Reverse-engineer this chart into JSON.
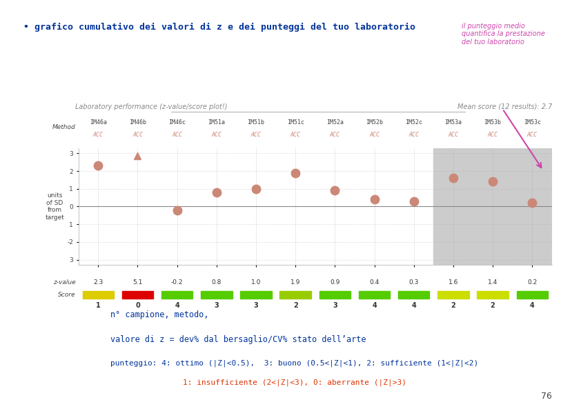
{
  "title_bullet": "• grafico cumulativo dei valori di z e dei punteggi del tuo laboratorio",
  "title_color": "#003399",
  "annotation_text": "il punteggio medio\nquantifica la prestazione\ndel tuo laboratorio",
  "annotation_color": "#cc44aa",
  "chart_title_left": "Laboratory performance (z-value/score plot!)",
  "chart_title_right": "Mean score (12 results): 2.7",
  "chart_title_color": "#888888",
  "page_number": "76",
  "columns": [
    "IM46a",
    "IM46b",
    "IM46c",
    "IM51a",
    "IM51b",
    "IM51c",
    "IM52a",
    "IM52b",
    "IM52c",
    "IM53a",
    "IM53b",
    "IM53c"
  ],
  "method_label": "ACC",
  "z_values": [
    2.3,
    5.1,
    -0.2,
    0.8,
    1.0,
    1.9,
    0.9,
    0.4,
    0.3,
    1.6,
    1.4,
    0.2
  ],
  "scores": [
    1,
    0,
    4,
    3,
    3,
    2,
    3,
    4,
    4,
    2,
    2,
    4
  ],
  "score_colors": [
    "#ddcc00",
    "#dd0000",
    "#55cc00",
    "#55cc00",
    "#55cc00",
    "#99cc00",
    "#55cc00",
    "#55cc00",
    "#55cc00",
    "#ccdd00",
    "#ccdd00",
    "#55cc00"
  ],
  "dot_color": "#cc8877",
  "highlighted_cols": [
    9,
    10,
    11
  ],
  "highlight_bg": "#cccccc",
  "ylabel_text": "units\nof SD\nfrom\ntarget",
  "background_color": "#ffffff",
  "grid_color": "#aaaaaa",
  "text_bottom_1": "n° campione, metodo,",
  "text_bottom_2": "valore di z = dev% dal bersaglio/CV% stato dell’arte",
  "text_bottom_3a": "punteggio: 4: ottimo (|Z|<0.5),  3: buono (0.5<|Z|<1), 2: sufficiente (1<|Z|<2)",
  "text_bottom_3b": "1: insufficiente (2<|Z|<3), 0: aberrante (|Z|>3)",
  "text_bottom_color": "#003399",
  "text_bottom_3b_color": "#dd3300"
}
